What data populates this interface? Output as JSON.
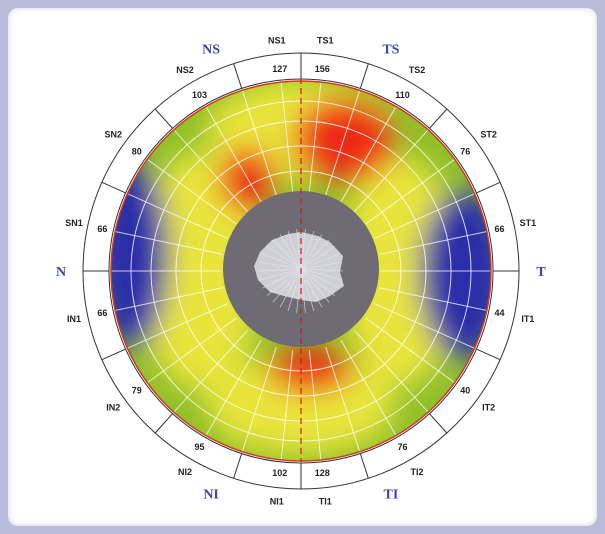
{
  "quadrants": [
    {
      "label": "NS",
      "angle": 112
    },
    {
      "label": "TS",
      "angle": 68
    },
    {
      "label": "N",
      "angle": 180
    },
    {
      "label": "T",
      "angle": 0
    },
    {
      "label": "NI",
      "angle": 248
    },
    {
      "label": "TI",
      "angle": 292
    }
  ],
  "sectors": [
    {
      "label": "NS1",
      "value": "127",
      "angle": 96
    },
    {
      "label": "TS1",
      "value": "156",
      "angle": 84
    },
    {
      "label": "TS2",
      "value": "110",
      "angle": 60
    },
    {
      "label": "ST2",
      "value": "76",
      "angle": 36
    },
    {
      "label": "ST1",
      "value": "66",
      "angle": 12
    },
    {
      "label": "IT1",
      "value": "44",
      "angle": -12
    },
    {
      "label": "IT2",
      "value": "40",
      "angle": -36
    },
    {
      "label": "TI2",
      "value": "76",
      "angle": -60
    },
    {
      "label": "TI1",
      "value": "128",
      "angle": -84
    },
    {
      "label": "NI1",
      "value": "102",
      "angle": -96
    },
    {
      "label": "NI2",
      "value": "95",
      "angle": -120
    },
    {
      "label": "IN2",
      "value": "79",
      "angle": -144
    },
    {
      "label": "IN1",
      "value": "66",
      "angle": -168
    },
    {
      "label": "SN1",
      "value": "66",
      "angle": 168
    },
    {
      "label": "SN2",
      "value": "80",
      "angle": 144
    },
    {
      "label": "NS2",
      "value": "103",
      "angle": 120
    }
  ],
  "colors": {
    "green": "#8fbf2a",
    "yellow": "#e8e43a",
    "red": "#ee2a16",
    "blue": "#2a2ea8",
    "disc": "#6f6b74",
    "cup": "#cfd0d6",
    "frame": "#ffffff"
  }
}
